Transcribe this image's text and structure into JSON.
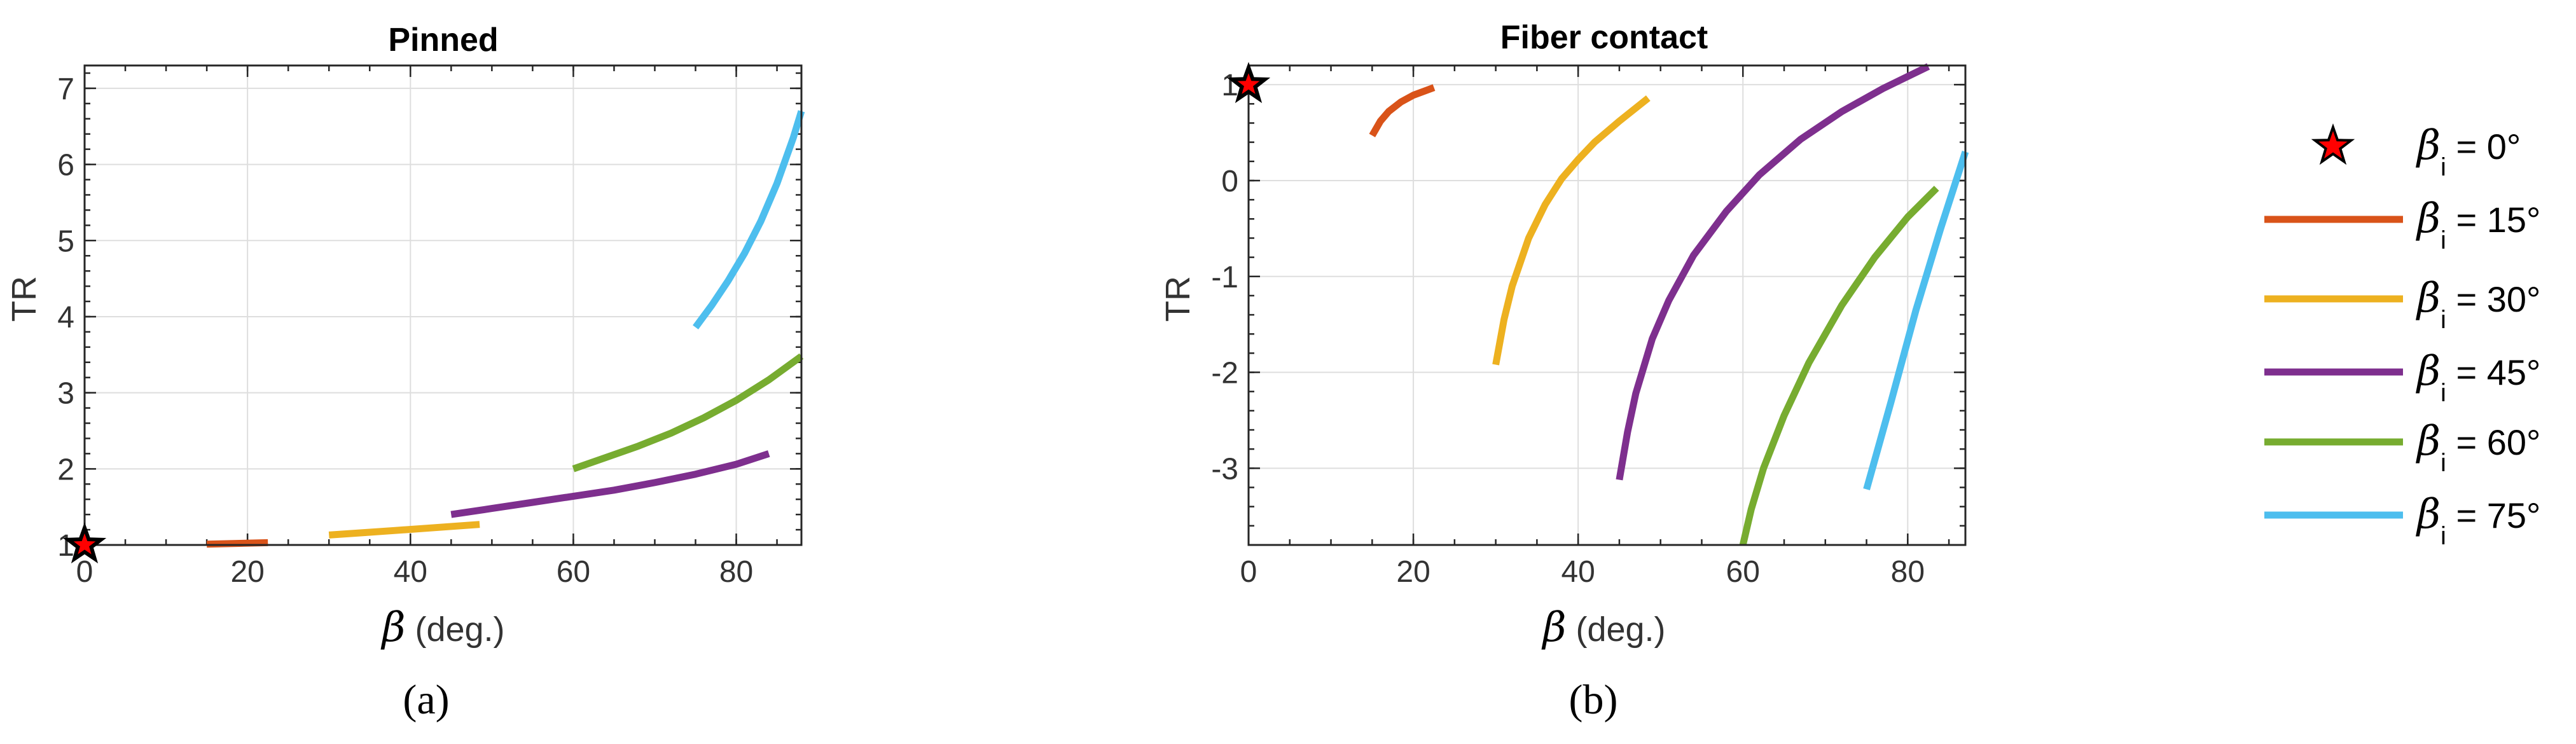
{
  "chart_data": [
    {
      "type": "line",
      "panel_label": "(a)",
      "title": "Pinned",
      "xlabel_symbol": "β",
      "xlabel": " (deg.)",
      "ylabel": "TR",
      "xlim": [
        0,
        88
      ],
      "ylim": [
        1,
        7.3
      ],
      "x_ticks": [
        0,
        20,
        40,
        60,
        80
      ],
      "y_ticks": [
        1,
        2,
        3,
        4,
        5,
        6,
        7
      ],
      "x_tick_labels": [
        "0",
        "20",
        "40",
        "60",
        "80"
      ],
      "y_tick_labels": [
        "1",
        "2",
        "3",
        "4",
        "5",
        "6",
        "7"
      ],
      "grid": true,
      "marker_point": {
        "x": 0,
        "y": 1
      },
      "series": [
        {
          "ref": "15",
          "color": "#D95319",
          "x": [
            15,
            22.5
          ],
          "y": [
            1.01,
            1.03
          ]
        },
        {
          "ref": "30",
          "color": "#EDB120",
          "x": [
            30,
            34,
            38,
            42,
            48.5
          ],
          "y": [
            1.13,
            1.16,
            1.19,
            1.22,
            1.27
          ]
        },
        {
          "ref": "45",
          "color": "#7E2F8E",
          "x": [
            45,
            50,
            55,
            60,
            65,
            70,
            75,
            80,
            84
          ],
          "y": [
            1.4,
            1.48,
            1.56,
            1.64,
            1.72,
            1.82,
            1.93,
            2.06,
            2.2
          ]
        },
        {
          "ref": "60",
          "color": "#77AC30",
          "x": [
            60,
            64,
            68,
            72,
            76,
            80,
            84,
            88
          ],
          "y": [
            2.0,
            2.15,
            2.3,
            2.47,
            2.67,
            2.9,
            3.17,
            3.48
          ]
        },
        {
          "ref": "75",
          "color": "#4DBEEE",
          "x": [
            75,
            77,
            79,
            81,
            83,
            85,
            87,
            88
          ],
          "y": [
            3.86,
            4.15,
            4.47,
            4.83,
            5.25,
            5.75,
            6.35,
            6.7
          ]
        }
      ]
    },
    {
      "type": "line",
      "panel_label": "(b)",
      "title": "Fiber contact",
      "xlabel_symbol": "β",
      "xlabel": " (deg.)",
      "ylabel": "TR",
      "xlim": [
        0,
        87
      ],
      "ylim": [
        -3.8,
        1.2
      ],
      "x_ticks": [
        0,
        20,
        40,
        60,
        80
      ],
      "y_ticks": [
        -3,
        -2,
        -1,
        0,
        1
      ],
      "x_tick_labels": [
        "0",
        "20",
        "40",
        "60",
        "80"
      ],
      "y_tick_labels": [
        "-3",
        "-2",
        "-1",
        "0",
        "1"
      ],
      "grid": true,
      "marker_point": {
        "x": 0,
        "y": 1
      },
      "series": [
        {
          "ref": "15",
          "color": "#D95319",
          "x": [
            15,
            16,
            17,
            18.5,
            20,
            22.5
          ],
          "y": [
            0.47,
            0.62,
            0.72,
            0.82,
            0.89,
            0.97
          ]
        },
        {
          "ref": "30",
          "color": "#EDB120",
          "x": [
            30,
            31,
            32,
            34,
            36,
            38,
            40,
            42,
            45,
            48.5
          ],
          "y": [
            -1.92,
            -1.45,
            -1.1,
            -0.6,
            -0.25,
            0.02,
            0.22,
            0.4,
            0.62,
            0.86
          ]
        },
        {
          "ref": "45",
          "color": "#7E2F8E",
          "x": [
            45,
            46,
            47,
            49,
            51,
            54,
            58,
            62,
            67,
            72,
            77,
            82.5
          ],
          "y": [
            -3.12,
            -2.62,
            -2.22,
            -1.65,
            -1.25,
            -0.78,
            -0.32,
            0.06,
            0.43,
            0.72,
            0.96,
            1.19
          ]
        },
        {
          "ref": "60",
          "color": "#77AC30",
          "x": [
            60,
            61,
            62.5,
            65,
            68,
            72,
            76,
            80,
            83.5
          ],
          "y": [
            -3.8,
            -3.43,
            -3.0,
            -2.45,
            -1.9,
            -1.3,
            -0.8,
            -0.38,
            -0.08
          ]
        },
        {
          "ref": "75",
          "color": "#4DBEEE",
          "x": [
            75,
            78,
            81,
            84,
            87
          ],
          "y": [
            -3.22,
            -2.3,
            -1.35,
            -0.5,
            0.3
          ]
        }
      ]
    }
  ],
  "legend": {
    "placement": "right",
    "symbol": "β",
    "subscript": "i",
    "items": [
      {
        "marker": "star",
        "color": "#ff0000",
        "label": " = 0°"
      },
      {
        "marker": "line",
        "color": "#D95319",
        "label": " = 15°"
      },
      {
        "marker": "line",
        "color": "#EDB120",
        "label": " = 30°"
      },
      {
        "marker": "line",
        "color": "#7E2F8E",
        "label": " = 45°"
      },
      {
        "marker": "line",
        "color": "#77AC30",
        "label": " = 60°"
      },
      {
        "marker": "line",
        "color": "#4DBEEE",
        "label": " = 75°"
      }
    ]
  }
}
